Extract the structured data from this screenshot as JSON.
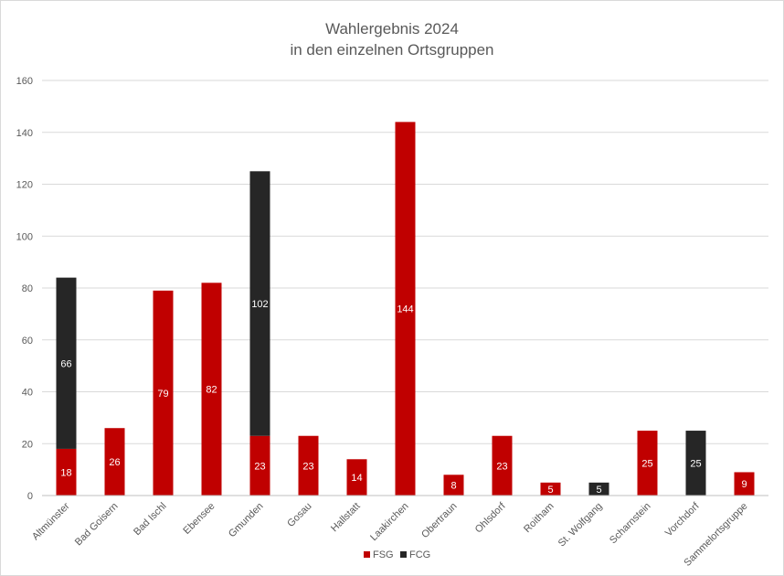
{
  "chart_data": {
    "type": "bar",
    "stacked": true,
    "title_line1": "Wahlergebnis 2024",
    "title_line2": "in den einzelnen Ortsgruppen",
    "xlabel": "",
    "ylabel": "",
    "ylim": [
      0,
      160
    ],
    "yticks": [
      "0",
      "20",
      "40",
      "60",
      "80",
      "100",
      "120",
      "140",
      "160"
    ],
    "grid": true,
    "legend_position": "bottom",
    "categories": [
      "Altmünster",
      "Bad Goisern",
      "Bad Ischl",
      "Ebensee",
      "Gmunden",
      "Gosau",
      "Hallstatt",
      "Laakirchen",
      "Obertraun",
      "Ohlsdorf",
      "Roitham",
      "St. Wolfgang",
      "Scharnstein",
      "Vorchdorf",
      "Sammelortsgruppe"
    ],
    "series": [
      {
        "name": "FSG",
        "color": "#c00000",
        "values": [
          18,
          26,
          79,
          82,
          23,
          23,
          14,
          144,
          8,
          23,
          5,
          null,
          25,
          null,
          9
        ]
      },
      {
        "name": "FCG",
        "color": "#262626",
        "values": [
          66,
          null,
          null,
          null,
          102,
          null,
          null,
          null,
          null,
          null,
          null,
          5,
          null,
          25,
          null
        ]
      }
    ]
  }
}
